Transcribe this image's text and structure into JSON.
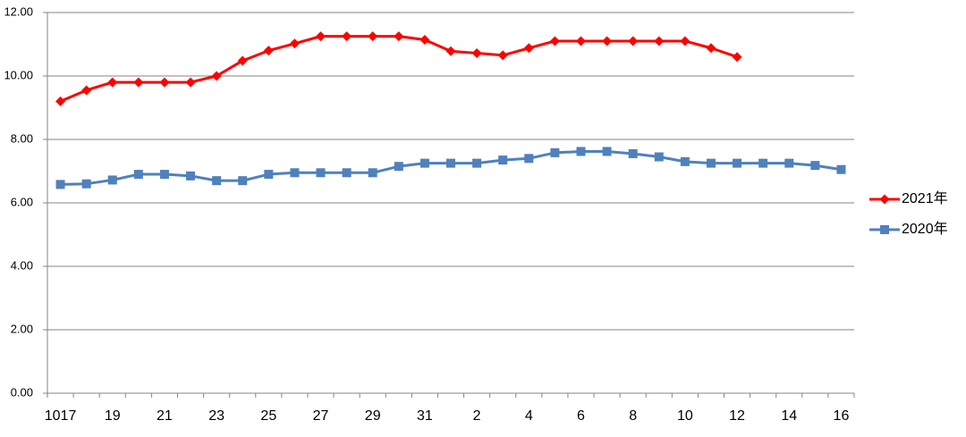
{
  "chart_data": {
    "type": "line",
    "categories": [
      "1017",
      null,
      "19",
      null,
      "21",
      null,
      "23",
      null,
      "25",
      null,
      "27",
      null,
      "29",
      null,
      "31",
      null,
      "2",
      null,
      "4",
      null,
      "6",
      null,
      "8",
      null,
      "10",
      null,
      "12",
      null,
      "14",
      null,
      "16"
    ],
    "series": [
      {
        "name": "2021年",
        "color": "#ff0000",
        "marker": "diamond",
        "values": [
          9.2,
          9.55,
          9.8,
          9.8,
          9.8,
          9.8,
          10.0,
          10.48,
          10.8,
          11.02,
          11.25,
          11.25,
          11.25,
          11.25,
          11.14,
          10.78,
          10.72,
          10.65,
          10.88,
          11.1,
          11.1,
          11.1,
          11.1,
          11.1,
          11.1,
          10.88,
          10.6,
          null,
          null,
          null,
          null
        ]
      },
      {
        "name": "2020年",
        "color": "#4f81bd",
        "marker": "square",
        "values": [
          6.58,
          6.6,
          6.72,
          6.9,
          6.9,
          6.85,
          6.7,
          6.7,
          6.9,
          6.95,
          6.95,
          6.95,
          6.95,
          7.15,
          7.25,
          7.25,
          7.25,
          7.35,
          7.4,
          7.58,
          7.62,
          7.62,
          7.55,
          7.45,
          7.3,
          7.25,
          7.25,
          7.25,
          7.25,
          7.18,
          7.05
        ]
      }
    ],
    "ylim": [
      0,
      12
    ],
    "yticks": [
      {
        "value": 0,
        "label": "0.00"
      },
      {
        "value": 2,
        "label": "2.00"
      },
      {
        "value": 4,
        "label": "4.00"
      },
      {
        "value": 6,
        "label": "6.00"
      },
      {
        "value": 8,
        "label": "8.00"
      },
      {
        "value": 10,
        "label": "10.00"
      },
      {
        "value": 12,
        "label": "12.00"
      }
    ],
    "grid": true,
    "legend": "right"
  }
}
